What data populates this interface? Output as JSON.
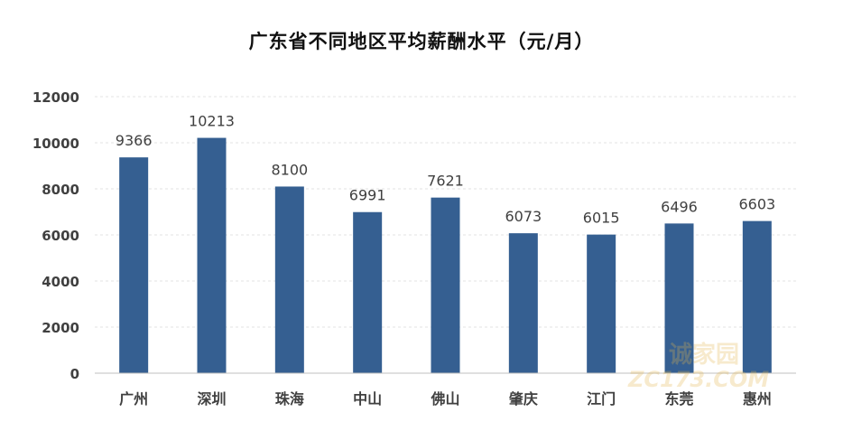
{
  "chart_data": {
    "type": "bar",
    "title": "广东省不同地区平均薪酬水平（元/月）",
    "categories": [
      "广州",
      "深圳",
      "珠海",
      "中山",
      "佛山",
      "肇庆",
      "江门",
      "东莞",
      "惠州"
    ],
    "values": [
      9366,
      10213,
      8100,
      6991,
      7621,
      6073,
      6015,
      6496,
      6603
    ],
    "ylim": [
      0,
      12000
    ],
    "yticks": [
      0,
      2000,
      4000,
      6000,
      8000,
      10000,
      12000
    ],
    "grid": true,
    "legend": "none",
    "bar_color": "#355f91"
  },
  "watermark": {
    "text_cn": "诚家园",
    "text_en": "ZC173.COM",
    "color": "#e3b64f"
  }
}
